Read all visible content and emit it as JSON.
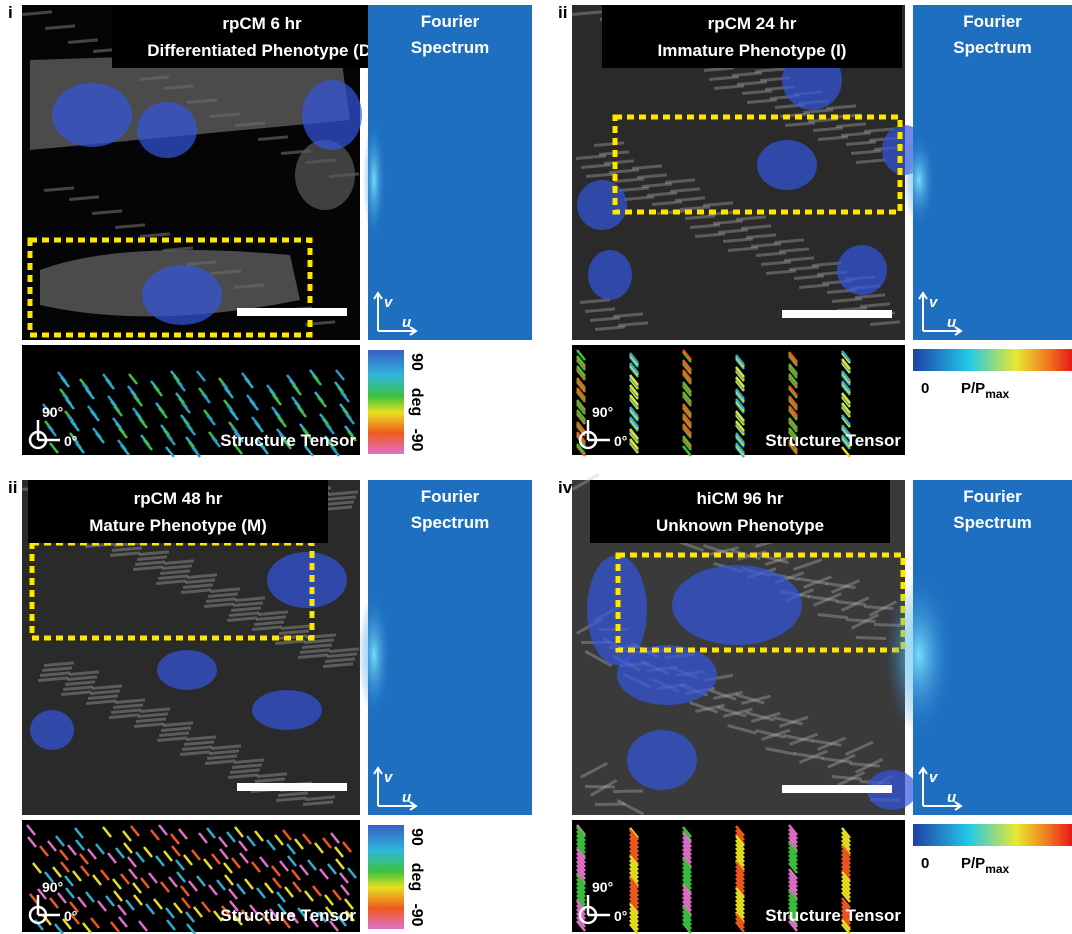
{
  "panels": [
    {
      "label": "i",
      "title": [
        "rpCM 6 hr",
        "Differentiated Phenotype (D)"
      ],
      "fourier_title": [
        "Fourier",
        "Spectrum"
      ],
      "axis_v": "v",
      "axis_u": "u",
      "tensor_90": "90°",
      "tensor_0": "0°",
      "tensor_title": "Structure Tensor",
      "colorbar": {
        "labels": [
          "90",
          "deg",
          "-90"
        ]
      }
    },
    {
      "label": "ii",
      "title": [
        "rpCM 24 hr",
        "Immature Phenotype (I)"
      ],
      "fourier_title": [
        "Fourier",
        "Spectrum"
      ],
      "axis_v": "v",
      "axis_u": "u",
      "tensor_90": "90°",
      "tensor_0": "0°",
      "tensor_title": "Structure Tensor",
      "colorbar": {
        "zero": "0",
        "label": "P/P",
        "subscript": "max"
      }
    },
    {
      "label": "ii",
      "title": [
        "rpCM 48 hr",
        "Mature Phenotype (M)"
      ],
      "fourier_title": [
        "Fourier",
        "Spectrum"
      ],
      "axis_v": "v",
      "axis_u": "u",
      "tensor_90": "90°",
      "tensor_0": "0°",
      "tensor_title": "Structure Tensor",
      "colorbar": {
        "labels": [
          "90",
          "deg",
          "-90"
        ]
      }
    },
    {
      "label": "iv",
      "title": [
        "hiCM 96 hr",
        "Unknown Phenotype"
      ],
      "fourier_title": [
        "Fourier",
        "Spectrum"
      ],
      "axis_v": "v",
      "axis_u": "u",
      "tensor_90": "90°",
      "tensor_0": "0°",
      "tensor_title": "Structure Tensor",
      "colorbar": {
        "zero": "0",
        "label": "P/P",
        "subscript": "max"
      }
    }
  ]
}
